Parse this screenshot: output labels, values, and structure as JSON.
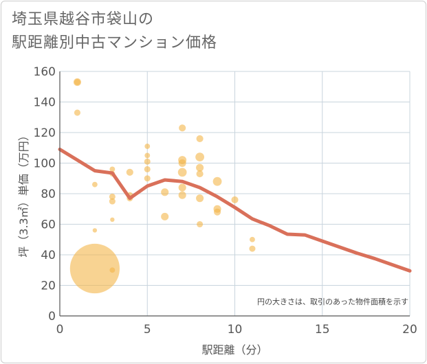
{
  "title_line1": "埼玉県越谷市袋山の",
  "title_line2": "駅距離別中古マンション価格",
  "chart_data": {
    "type": "scatter",
    "xlabel": "駅距離（分）",
    "ylabel": "坪（3.3㎡）単価（万円）",
    "xlim": [
      0,
      20
    ],
    "ylim": [
      0,
      160
    ],
    "xticks": [
      0,
      5,
      10,
      15,
      20
    ],
    "yticks": [
      0,
      20,
      40,
      60,
      80,
      100,
      120,
      140,
      160
    ],
    "grid": true,
    "note": "円の大きさは、取引のあった物件面積を示す",
    "colors": {
      "bubble": "#f3b54a",
      "line": "#d9705a",
      "grid": "#c8d4dd",
      "axis": "#555555"
    },
    "bubbles": [
      {
        "x": 1,
        "y": 153,
        "size": 3
      },
      {
        "x": 1,
        "y": 153,
        "size": 2
      },
      {
        "x": 1,
        "y": 133,
        "size": 2
      },
      {
        "x": 2,
        "y": 31,
        "size": 10
      },
      {
        "x": 2,
        "y": 86,
        "size": 1.5
      },
      {
        "x": 2,
        "y": 56,
        "size": 1
      },
      {
        "x": 3,
        "y": 96,
        "size": 1.5
      },
      {
        "x": 3,
        "y": 93,
        "size": 1.5
      },
      {
        "x": 3,
        "y": 78,
        "size": 2
      },
      {
        "x": 3,
        "y": 75,
        "size": 2
      },
      {
        "x": 3,
        "y": 63,
        "size": 1
      },
      {
        "x": 3,
        "y": 30,
        "size": 1.5
      },
      {
        "x": 4,
        "y": 94,
        "size": 2.5
      },
      {
        "x": 4,
        "y": 79,
        "size": 2
      },
      {
        "x": 4,
        "y": 77,
        "size": 2
      },
      {
        "x": 5,
        "y": 111,
        "size": 1.5
      },
      {
        "x": 5,
        "y": 105,
        "size": 1.5
      },
      {
        "x": 5,
        "y": 101,
        "size": 2
      },
      {
        "x": 5,
        "y": 96,
        "size": 2
      },
      {
        "x": 5,
        "y": 90,
        "size": 2
      },
      {
        "x": 6,
        "y": 81,
        "size": 3
      },
      {
        "x": 6,
        "y": 65,
        "size": 3
      },
      {
        "x": 7,
        "y": 123,
        "size": 2.5
      },
      {
        "x": 7,
        "y": 102,
        "size": 3.5
      },
      {
        "x": 7,
        "y": 100,
        "size": 3
      },
      {
        "x": 7,
        "y": 94,
        "size": 4
      },
      {
        "x": 7,
        "y": 84,
        "size": 3
      },
      {
        "x": 7,
        "y": 79,
        "size": 3
      },
      {
        "x": 8,
        "y": 116,
        "size": 2.5
      },
      {
        "x": 8,
        "y": 104,
        "size": 4
      },
      {
        "x": 8,
        "y": 97,
        "size": 3
      },
      {
        "x": 8,
        "y": 93,
        "size": 2.5
      },
      {
        "x": 8,
        "y": 77,
        "size": 3
      },
      {
        "x": 8,
        "y": 60,
        "size": 2
      },
      {
        "x": 9,
        "y": 88,
        "size": 4
      },
      {
        "x": 9,
        "y": 70,
        "size": 3
      },
      {
        "x": 9,
        "y": 68,
        "size": 2.5
      },
      {
        "x": 10,
        "y": 76,
        "size": 2.5
      },
      {
        "x": 11,
        "y": 50,
        "size": 1.5
      },
      {
        "x": 11,
        "y": 44,
        "size": 2
      }
    ],
    "trend_line": {
      "x": [
        0,
        1,
        2,
        3,
        4,
        5,
        6,
        7,
        8,
        9,
        10,
        11,
        12,
        13,
        14,
        15,
        16,
        17,
        18,
        19,
        20
      ],
      "y": [
        109,
        102,
        95,
        93.5,
        77,
        85,
        89,
        88,
        84,
        78,
        71,
        63.5,
        59,
        53.5,
        53,
        49,
        45,
        41,
        37.5,
        33.5,
        29.5
      ]
    }
  }
}
